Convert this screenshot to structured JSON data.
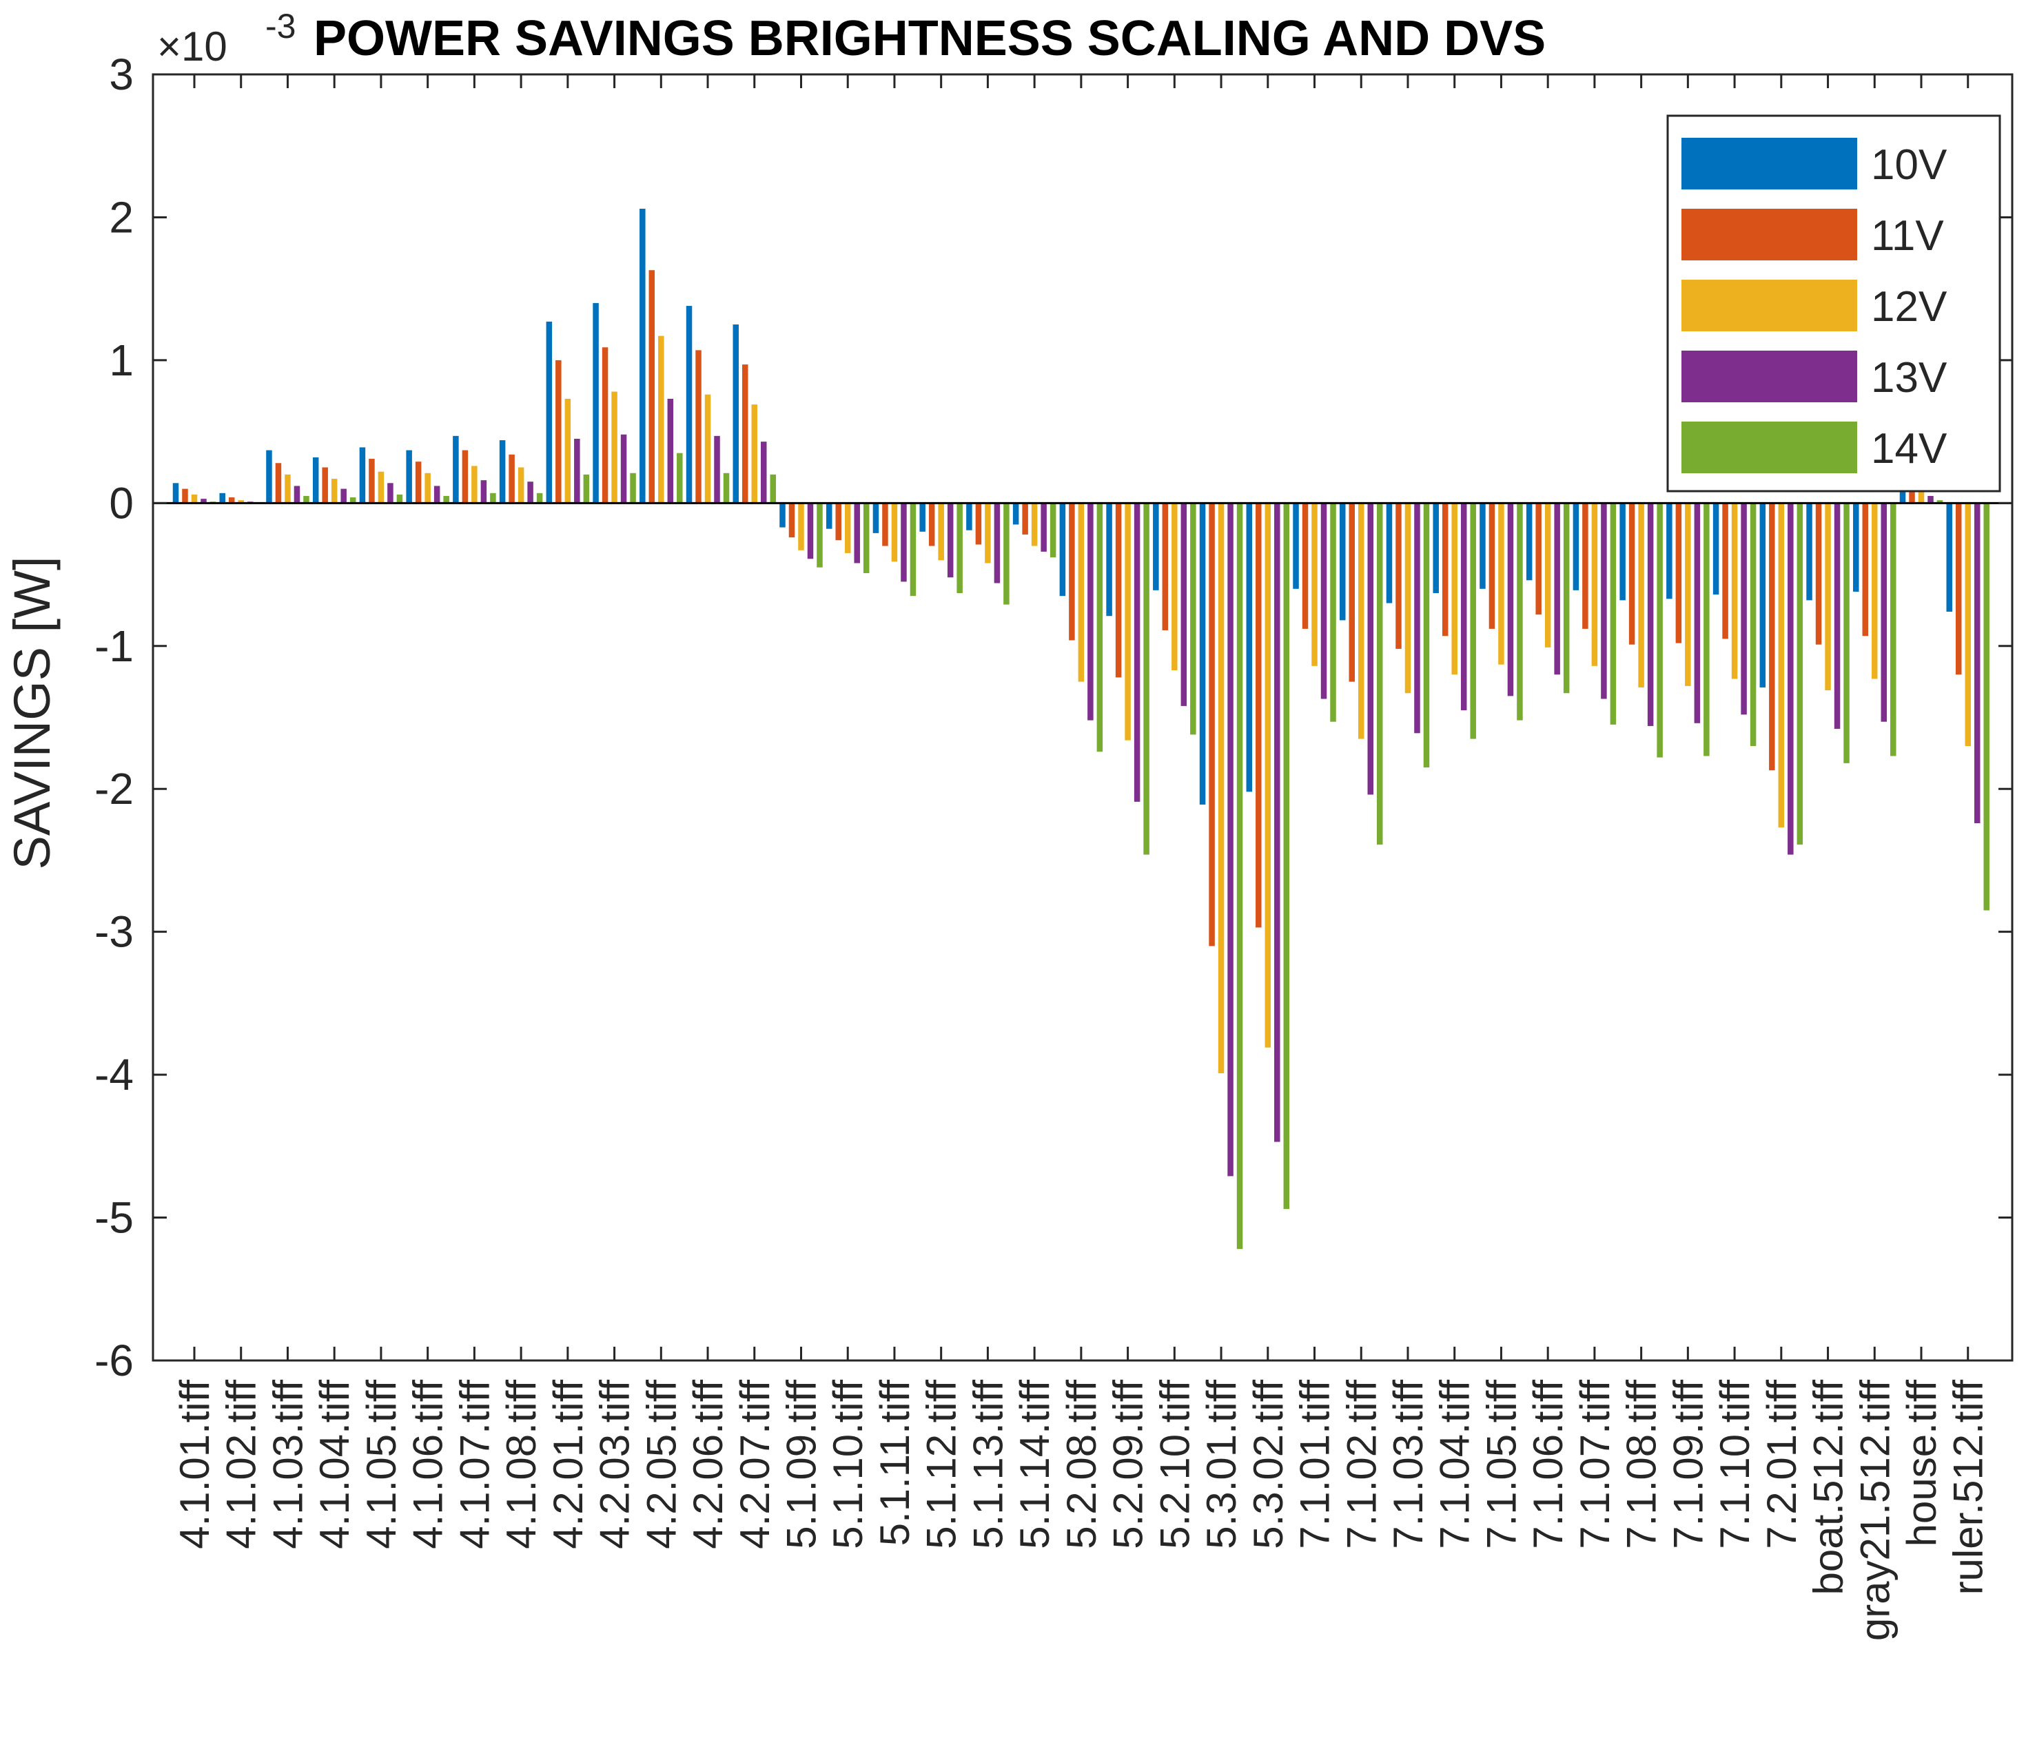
{
  "colors": {
    "background": "#ffffff",
    "axis": "#262626",
    "series": [
      "#0072BD",
      "#D95319",
      "#EDB120",
      "#7E2F8E",
      "#77AC30"
    ]
  },
  "chart_data": {
    "type": "bar",
    "title": "POWER SAVINGS BRIGHTNESS SCALING AND DVS",
    "ylabel": "SAVINGS  [W]",
    "xlabel": "",
    "y_exponent_label": "×10",
    "y_exponent_power": "-3",
    "ylim": [
      -6,
      3
    ],
    "yticks": [
      3,
      2,
      1,
      0,
      -1,
      -2,
      -3,
      -4,
      -5,
      -6
    ],
    "ytick_labels": [
      "3",
      "2",
      "1",
      "0",
      "-1",
      "-2",
      "-3",
      "-4",
      "-5",
      "-6"
    ],
    "grid": false,
    "legend_position": "top-right",
    "categories": [
      "4.1.01.tiff",
      "4.1.02.tiff",
      "4.1.03.tiff",
      "4.1.04.tiff",
      "4.1.05.tiff",
      "4.1.06.tiff",
      "4.1.07.tiff",
      "4.1.08.tiff",
      "4.2.01.tiff",
      "4.2.03.tiff",
      "4.2.05.tiff",
      "4.2.06.tiff",
      "4.2.07.tiff",
      "5.1.09.tiff",
      "5.1.10.tiff",
      "5.1.11.tiff",
      "5.1.12.tiff",
      "5.1.13.tiff",
      "5.1.14.tiff",
      "5.2.08.tiff",
      "5.2.09.tiff",
      "5.2.10.tiff",
      "5.3.01.tiff",
      "5.3.02.tiff",
      "7.1.01.tiff",
      "7.1.02.tiff",
      "7.1.03.tiff",
      "7.1.04.tiff",
      "7.1.05.tiff",
      "7.1.06.tiff",
      "7.1.07.tiff",
      "7.1.08.tiff",
      "7.1.09.tiff",
      "7.1.10.tiff",
      "7.2.01.tiff",
      "boat.512.tiff",
      "gray21.512.tiff",
      "house.tiff",
      "ruler.512.tiff"
    ],
    "series": [
      {
        "name": "10V",
        "values": [
          0.14,
          0.07,
          0.37,
          0.32,
          0.39,
          0.37,
          0.47,
          0.44,
          1.27,
          1.4,
          2.06,
          1.38,
          1.25,
          -0.17,
          -0.18,
          -0.21,
          -0.2,
          -0.19,
          -0.15,
          -0.65,
          -0.79,
          -0.61,
          -2.11,
          -2.02,
          -0.6,
          -0.82,
          -0.7,
          -0.63,
          -0.6,
          -0.54,
          -0.61,
          -0.68,
          -0.67,
          -0.64,
          -1.29,
          -0.68,
          -0.62,
          0.15,
          -0.76
        ]
      },
      {
        "name": "11V",
        "values": [
          0.1,
          0.04,
          0.28,
          0.25,
          0.31,
          0.29,
          0.37,
          0.34,
          1.0,
          1.09,
          1.63,
          1.07,
          0.97,
          -0.24,
          -0.26,
          -0.3,
          -0.3,
          -0.29,
          -0.22,
          -0.96,
          -1.22,
          -0.89,
          -3.1,
          -2.97,
          -0.88,
          -1.25,
          -1.02,
          -0.93,
          -0.88,
          -0.78,
          -0.88,
          -0.99,
          -0.98,
          -0.95,
          -1.87,
          -0.99,
          -0.93,
          0.12,
          -1.2
        ]
      },
      {
        "name": "12V",
        "values": [
          0.06,
          0.02,
          0.2,
          0.17,
          0.22,
          0.21,
          0.26,
          0.25,
          0.73,
          0.78,
          1.17,
          0.76,
          0.69,
          -0.33,
          -0.35,
          -0.41,
          -0.4,
          -0.42,
          -0.3,
          -1.25,
          -1.66,
          -1.17,
          -3.99,
          -3.81,
          -1.14,
          -1.65,
          -1.33,
          -1.2,
          -1.13,
          -1.01,
          -1.14,
          -1.29,
          -1.28,
          -1.23,
          -2.27,
          -1.31,
          -1.23,
          0.08,
          -1.7
        ]
      },
      {
        "name": "13V",
        "values": [
          0.03,
          0.01,
          0.12,
          0.1,
          0.14,
          0.12,
          0.16,
          0.15,
          0.45,
          0.48,
          0.73,
          0.47,
          0.43,
          -0.39,
          -0.42,
          -0.55,
          -0.52,
          -0.56,
          -0.34,
          -1.52,
          -2.09,
          -1.42,
          -4.71,
          -4.47,
          -1.37,
          -2.04,
          -1.61,
          -1.45,
          -1.35,
          -1.2,
          -1.37,
          -1.56,
          -1.54,
          -1.48,
          -2.46,
          -1.58,
          -1.53,
          0.05,
          -2.24
        ]
      },
      {
        "name": "14V",
        "values": [
          0.01,
          0.0,
          0.05,
          0.04,
          0.06,
          0.05,
          0.07,
          0.07,
          0.2,
          0.21,
          0.35,
          0.21,
          0.2,
          -0.45,
          -0.49,
          -0.65,
          -0.63,
          -0.71,
          -0.38,
          -1.74,
          -2.46,
          -1.62,
          -5.22,
          -4.94,
          -1.53,
          -2.39,
          -1.85,
          -1.65,
          -1.52,
          -1.33,
          -1.55,
          -1.78,
          -1.77,
          -1.7,
          -2.39,
          -1.82,
          -1.77,
          0.02,
          -2.85
        ]
      }
    ]
  }
}
